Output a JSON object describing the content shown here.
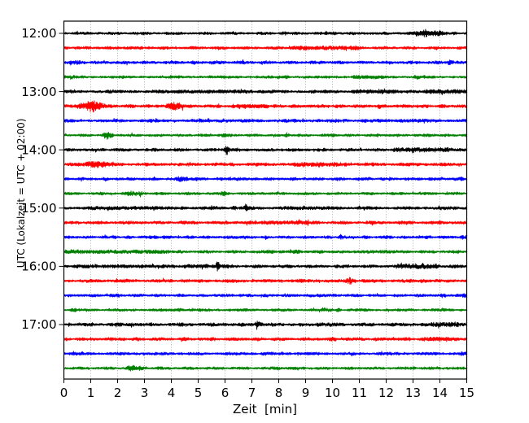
{
  "figure": {
    "background": "#ffffff",
    "grid_color": "#999999",
    "axis_color": "#000000"
  },
  "chart_data": {
    "type": "line",
    "title": "",
    "xlabel": "Zeit  [min]",
    "ylabel": "UTC (Lokalzeit = UTC + 02:00)",
    "xlim": [
      0,
      15
    ],
    "x_ticks": [
      0,
      1,
      2,
      3,
      4,
      5,
      6,
      7,
      8,
      9,
      10,
      11,
      12,
      13,
      14,
      15
    ],
    "grid_minutes": [
      1,
      2,
      3,
      4,
      5,
      6,
      7,
      8,
      9,
      10,
      11,
      12,
      13,
      14
    ],
    "legend": "none",
    "grid": "vertical-dotted",
    "minutes_per_line": 15,
    "trace_color_cycle": [
      "#000000",
      "#ff0000",
      "#0000ff",
      "#008000"
    ],
    "y_tick_labels": [
      "12:00",
      "13:00",
      "14:00",
      "15:00",
      "16:00",
      "17:00"
    ],
    "traces": [
      {
        "utc": "12:00",
        "color": "#000000",
        "base": 1.5,
        "events": [
          {
            "shape": "gauss",
            "t": 8.2,
            "w": 0.15,
            "a": 2.5
          },
          {
            "shape": "gauss",
            "t": 10.0,
            "w": 0.18,
            "a": 2.3
          },
          {
            "shape": "flat",
            "t0": 13.05,
            "t1": 14.05,
            "a": 3.4
          },
          {
            "shape": "gauss",
            "t": 13.45,
            "w": 0.1,
            "a": 5.2
          },
          {
            "shape": "gauss",
            "t": 13.75,
            "w": 0.08,
            "a": 4.2
          },
          {
            "shape": "gauss",
            "t": 14.55,
            "w": 0.1,
            "a": 2.4
          }
        ]
      },
      {
        "utc": "12:15",
        "color": "#ff0000",
        "base": 1.6,
        "events": [
          {
            "shape": "flat",
            "t0": 8.4,
            "t1": 10.9,
            "a": 2.6
          },
          {
            "shape": "gauss",
            "t": 10.9,
            "w": 0.15,
            "a": 2.9
          },
          {
            "shape": "gauss",
            "t": 2.5,
            "w": 0.3,
            "a": 2.0
          }
        ]
      },
      {
        "utc": "12:30",
        "color": "#0000ff",
        "base": 1.7,
        "events": [
          {
            "shape": "gauss",
            "t": 0.45,
            "w": 0.35,
            "a": 2.7
          },
          {
            "shape": "gauss",
            "t": 5.6,
            "w": 0.25,
            "a": 2.2
          },
          {
            "shape": "gauss",
            "t": 14.35,
            "w": 0.12,
            "a": 3.3
          },
          {
            "shape": "gauss",
            "t": 9.3,
            "w": 0.2,
            "a": 2.1
          }
        ]
      },
      {
        "utc": "12:45",
        "color": "#008000",
        "base": 1.5,
        "events": [
          {
            "shape": "gauss",
            "t": 0.3,
            "w": 0.15,
            "a": 2.6
          },
          {
            "shape": "gauss",
            "t": 8.3,
            "w": 0.12,
            "a": 2.4
          },
          {
            "shape": "flat",
            "t0": 10.8,
            "t1": 11.9,
            "a": 2.4
          },
          {
            "shape": "gauss",
            "t": 13.15,
            "w": 0.12,
            "a": 2.9
          },
          {
            "shape": "gauss",
            "t": 5.9,
            "w": 0.2,
            "a": 2.0
          }
        ]
      },
      {
        "utc": "13:00",
        "color": "#000000",
        "base": 1.7,
        "events": [
          {
            "shape": "flat",
            "t0": 3.4,
            "t1": 7.0,
            "a": 2.2
          },
          {
            "shape": "flat",
            "t0": 10.8,
            "t1": 12.5,
            "a": 2.5
          },
          {
            "shape": "flat",
            "t0": 13.5,
            "t1": 14.9,
            "a": 2.7
          },
          {
            "shape": "gauss",
            "t": 14.0,
            "w": 0.1,
            "a": 3.3
          },
          {
            "shape": "gauss",
            "t": 6.3,
            "w": 0.15,
            "a": 2.6
          }
        ]
      },
      {
        "utc": "13:15",
        "color": "#ff0000",
        "base": 1.8,
        "events": [
          {
            "shape": "gauss",
            "t": 0.75,
            "w": 0.3,
            "a": 4.0
          },
          {
            "shape": "gauss",
            "t": 1.05,
            "w": 0.22,
            "a": 7.5
          },
          {
            "shape": "gauss",
            "t": 1.35,
            "w": 0.2,
            "a": 4.5
          },
          {
            "shape": "gauss",
            "t": 4.15,
            "w": 0.3,
            "a": 5.0
          },
          {
            "shape": "flat",
            "t0": 6.3,
            "t1": 7.6,
            "a": 2.6
          },
          {
            "shape": "gauss",
            "t": 11.75,
            "w": 0.1,
            "a": 3.6
          },
          {
            "shape": "gauss",
            "t": 13.3,
            "w": 0.15,
            "a": 2.6
          }
        ]
      },
      {
        "utc": "13:30",
        "color": "#0000ff",
        "base": 1.7,
        "events": [
          {
            "shape": "gauss",
            "t": 6.0,
            "w": 0.3,
            "a": 2.3
          },
          {
            "shape": "gauss",
            "t": 9.5,
            "w": 0.12,
            "a": 2.3
          },
          {
            "shape": "gauss",
            "t": 11.2,
            "w": 0.12,
            "a": 2.5
          },
          {
            "shape": "flat",
            "t0": 12.5,
            "t1": 14.0,
            "a": 2.1
          }
        ]
      },
      {
        "utc": "13:45",
        "color": "#008000",
        "base": 1.5,
        "events": [
          {
            "shape": "gauss",
            "t": 1.6,
            "w": 0.1,
            "a": 5.5
          },
          {
            "shape": "gauss",
            "t": 1.75,
            "w": 0.08,
            "a": 3.5
          },
          {
            "shape": "gauss",
            "t": 6.0,
            "w": 0.15,
            "a": 2.6
          },
          {
            "shape": "gauss",
            "t": 8.3,
            "w": 0.12,
            "a": 2.4
          },
          {
            "shape": "gauss",
            "t": 13.6,
            "w": 0.15,
            "a": 2.4
          },
          {
            "shape": "gauss",
            "t": 10.0,
            "w": 0.15,
            "a": 2.2
          }
        ]
      },
      {
        "utc": "14:00",
        "color": "#000000",
        "base": 1.7,
        "events": [
          {
            "shape": "gauss",
            "t": 6.05,
            "w": 0.06,
            "a": 7.5
          },
          {
            "shape": "gauss",
            "t": 6.15,
            "w": 0.1,
            "a": 3.0
          },
          {
            "shape": "flat",
            "t0": 12.3,
            "t1": 14.4,
            "a": 2.9
          },
          {
            "shape": "gauss",
            "t": 13.0,
            "w": 0.09,
            "a": 4.2
          },
          {
            "shape": "gauss",
            "t": 14.3,
            "w": 0.1,
            "a": 3.6
          },
          {
            "shape": "gauss",
            "t": 2.0,
            "w": 0.3,
            "a": 2.0
          }
        ]
      },
      {
        "utc": "14:15",
        "color": "#ff0000",
        "base": 1.8,
        "events": [
          {
            "shape": "gauss",
            "t": 1.2,
            "w": 0.45,
            "a": 4.3
          },
          {
            "shape": "gauss",
            "t": 1.5,
            "w": 0.2,
            "a": 3.2
          },
          {
            "shape": "flat",
            "t0": 8.5,
            "t1": 10.5,
            "a": 2.7
          },
          {
            "shape": "gauss",
            "t": 9.5,
            "w": 0.2,
            "a": 3.3
          },
          {
            "shape": "gauss",
            "t": 11.5,
            "w": 0.15,
            "a": 2.7
          },
          {
            "shape": "gauss",
            "t": 4.4,
            "w": 0.2,
            "a": 2.2
          }
        ]
      },
      {
        "utc": "14:30",
        "color": "#0000ff",
        "base": 1.6,
        "events": [
          {
            "shape": "gauss",
            "t": 4.35,
            "w": 0.18,
            "a": 3.5
          },
          {
            "shape": "gauss",
            "t": 4.55,
            "w": 0.1,
            "a": 2.8
          },
          {
            "shape": "gauss",
            "t": 10.2,
            "w": 0.15,
            "a": 2.5
          },
          {
            "shape": "gauss",
            "t": 11.35,
            "w": 0.1,
            "a": 2.5
          },
          {
            "shape": "gauss",
            "t": 14.8,
            "w": 0.1,
            "a": 2.7
          },
          {
            "shape": "gauss",
            "t": 6.5,
            "w": 0.2,
            "a": 2.1
          }
        ]
      },
      {
        "utc": "14:45",
        "color": "#008000",
        "base": 1.5,
        "events": [
          {
            "shape": "gauss",
            "t": 2.5,
            "w": 0.22,
            "a": 3.3
          },
          {
            "shape": "gauss",
            "t": 2.85,
            "w": 0.1,
            "a": 2.9
          },
          {
            "shape": "gauss",
            "t": 5.95,
            "w": 0.15,
            "a": 3.2
          },
          {
            "shape": "gauss",
            "t": 13.3,
            "w": 0.1,
            "a": 2.3
          },
          {
            "shape": "gauss",
            "t": 1.4,
            "w": 0.15,
            "a": 2.2
          }
        ]
      },
      {
        "utc": "15:00",
        "color": "#000000",
        "base": 1.7,
        "events": [
          {
            "shape": "gauss",
            "t": 6.8,
            "w": 0.09,
            "a": 4.6
          },
          {
            "shape": "gauss",
            "t": 6.35,
            "w": 0.12,
            "a": 2.6
          },
          {
            "shape": "flat",
            "t0": 1.0,
            "t1": 2.4,
            "a": 2.3
          },
          {
            "shape": "flat",
            "t0": 2.8,
            "t1": 3.7,
            "a": 2.2
          },
          {
            "shape": "gauss",
            "t": 14.0,
            "w": 0.08,
            "a": 3.4
          },
          {
            "shape": "flat",
            "t0": 8.2,
            "t1": 9.9,
            "a": 2.1
          }
        ]
      },
      {
        "utc": "15:15",
        "color": "#ff0000",
        "base": 1.8,
        "events": [
          {
            "shape": "flat",
            "t0": 7.4,
            "t1": 9.1,
            "a": 2.5
          },
          {
            "shape": "gauss",
            "t": 10.5,
            "w": 0.2,
            "a": 2.2
          },
          {
            "shape": "gauss",
            "t": 2.2,
            "w": 0.25,
            "a": 2.1
          }
        ]
      },
      {
        "utc": "15:30",
        "color": "#0000ff",
        "base": 1.6,
        "events": [
          {
            "shape": "gauss",
            "t": 3.3,
            "w": 0.2,
            "a": 2.4
          },
          {
            "shape": "gauss",
            "t": 10.35,
            "w": 0.15,
            "a": 2.9
          },
          {
            "shape": "gauss",
            "t": 12.0,
            "w": 0.12,
            "a": 2.5
          },
          {
            "shape": "gauss",
            "t": 14.85,
            "w": 0.12,
            "a": 3.0
          },
          {
            "shape": "gauss",
            "t": 6.4,
            "w": 0.2,
            "a": 2.1
          }
        ]
      },
      {
        "utc": "15:45",
        "color": "#008000",
        "base": 1.6,
        "events": [
          {
            "shape": "flat",
            "t0": 0.0,
            "t1": 3.9,
            "a": 2.4
          },
          {
            "shape": "gauss",
            "t": 0.5,
            "w": 0.3,
            "a": 2.8
          },
          {
            "shape": "gauss",
            "t": 7.6,
            "w": 0.3,
            "a": 2.5
          },
          {
            "shape": "gauss",
            "t": 8.6,
            "w": 0.25,
            "a": 2.7
          },
          {
            "shape": "flat",
            "t0": 11.0,
            "t1": 12.2,
            "a": 2.1
          }
        ]
      },
      {
        "utc": "16:00",
        "color": "#000000",
        "base": 1.7,
        "events": [
          {
            "shape": "flat",
            "t0": 0.4,
            "t1": 3.7,
            "a": 2.2
          },
          {
            "shape": "flat",
            "t0": 4.5,
            "t1": 6.3,
            "a": 2.5
          },
          {
            "shape": "gauss",
            "t": 5.72,
            "w": 0.07,
            "a": 6.0
          },
          {
            "shape": "flat",
            "t0": 12.4,
            "t1": 13.9,
            "a": 3.1
          },
          {
            "shape": "gauss",
            "t": 13.1,
            "w": 0.1,
            "a": 3.6
          },
          {
            "shape": "gauss",
            "t": 14.5,
            "w": 0.12,
            "a": 2.6
          }
        ]
      },
      {
        "utc": "16:15",
        "color": "#ff0000",
        "base": 1.8,
        "events": [
          {
            "shape": "gauss",
            "t": 10.65,
            "w": 0.12,
            "a": 4.6
          },
          {
            "shape": "gauss",
            "t": 10.8,
            "w": 0.08,
            "a": 3.2
          },
          {
            "shape": "gauss",
            "t": 4.5,
            "w": 0.25,
            "a": 2.1
          },
          {
            "shape": "gauss",
            "t": 13.4,
            "w": 0.2,
            "a": 2.2
          }
        ]
      },
      {
        "utc": "16:30",
        "color": "#0000ff",
        "base": 1.6,
        "events": [
          {
            "shape": "gauss",
            "t": 9.6,
            "w": 0.35,
            "a": 2.3
          },
          {
            "shape": "gauss",
            "t": 14.9,
            "w": 0.1,
            "a": 2.9
          },
          {
            "shape": "gauss",
            "t": 1.8,
            "w": 0.2,
            "a": 2.1
          },
          {
            "shape": "gauss",
            "t": 6.2,
            "w": 0.15,
            "a": 2.1
          }
        ]
      },
      {
        "utc": "16:45",
        "color": "#008000",
        "base": 1.5,
        "events": [
          {
            "shape": "gauss",
            "t": 0.35,
            "w": 0.15,
            "a": 2.7
          },
          {
            "shape": "gauss",
            "t": 9.7,
            "w": 0.1,
            "a": 2.9
          },
          {
            "shape": "gauss",
            "t": 10.2,
            "w": 0.08,
            "a": 2.7
          },
          {
            "shape": "gauss",
            "t": 4.3,
            "w": 0.2,
            "a": 2.1
          },
          {
            "shape": "gauss",
            "t": 12.9,
            "w": 0.12,
            "a": 2.2
          }
        ]
      },
      {
        "utc": "17:00",
        "color": "#000000",
        "base": 1.8,
        "events": [
          {
            "shape": "gauss",
            "t": 7.2,
            "w": 0.06,
            "a": 6.5
          },
          {
            "shape": "gauss",
            "t": 7.3,
            "w": 0.1,
            "a": 2.8
          },
          {
            "shape": "flat",
            "t0": 9.4,
            "t1": 10.4,
            "a": 2.4
          },
          {
            "shape": "flat",
            "t0": 13.6,
            "t1": 14.7,
            "a": 2.9
          },
          {
            "shape": "gauss",
            "t": 2.5,
            "w": 0.3,
            "a": 2.2
          },
          {
            "shape": "gauss",
            "t": 4.3,
            "w": 0.2,
            "a": 2.4
          },
          {
            "shape": "gauss",
            "t": 5.9,
            "w": 0.15,
            "a": 2.3
          }
        ]
      },
      {
        "utc": "17:15",
        "color": "#ff0000",
        "base": 1.8,
        "events": [
          {
            "shape": "flat",
            "t0": 13.3,
            "t1": 14.3,
            "a": 2.6
          },
          {
            "shape": "gauss",
            "t": 7.9,
            "w": 0.2,
            "a": 2.3
          },
          {
            "shape": "gauss",
            "t": 2.1,
            "w": 0.25,
            "a": 2.1
          },
          {
            "shape": "gauss",
            "t": 10.6,
            "w": 0.2,
            "a": 2.2
          }
        ]
      },
      {
        "utc": "17:30",
        "color": "#0000ff",
        "base": 1.6,
        "events": [
          {
            "shape": "gauss",
            "t": 14.85,
            "w": 0.12,
            "a": 3.0
          },
          {
            "shape": "gauss",
            "t": 0.35,
            "w": 0.2,
            "a": 2.3
          },
          {
            "shape": "gauss",
            "t": 7.5,
            "w": 0.2,
            "a": 2.1
          },
          {
            "shape": "gauss",
            "t": 11.8,
            "w": 0.15,
            "a": 2.2
          }
        ]
      },
      {
        "utc": "17:45",
        "color": "#008000",
        "base": 1.5,
        "events": [
          {
            "shape": "gauss",
            "t": 2.55,
            "w": 0.2,
            "a": 3.8
          },
          {
            "shape": "gauss",
            "t": 2.85,
            "w": 0.12,
            "a": 3.2
          },
          {
            "shape": "gauss",
            "t": 13.0,
            "w": 0.1,
            "a": 2.4
          },
          {
            "shape": "gauss",
            "t": 7.9,
            "w": 0.2,
            "a": 2.2
          }
        ]
      }
    ]
  }
}
